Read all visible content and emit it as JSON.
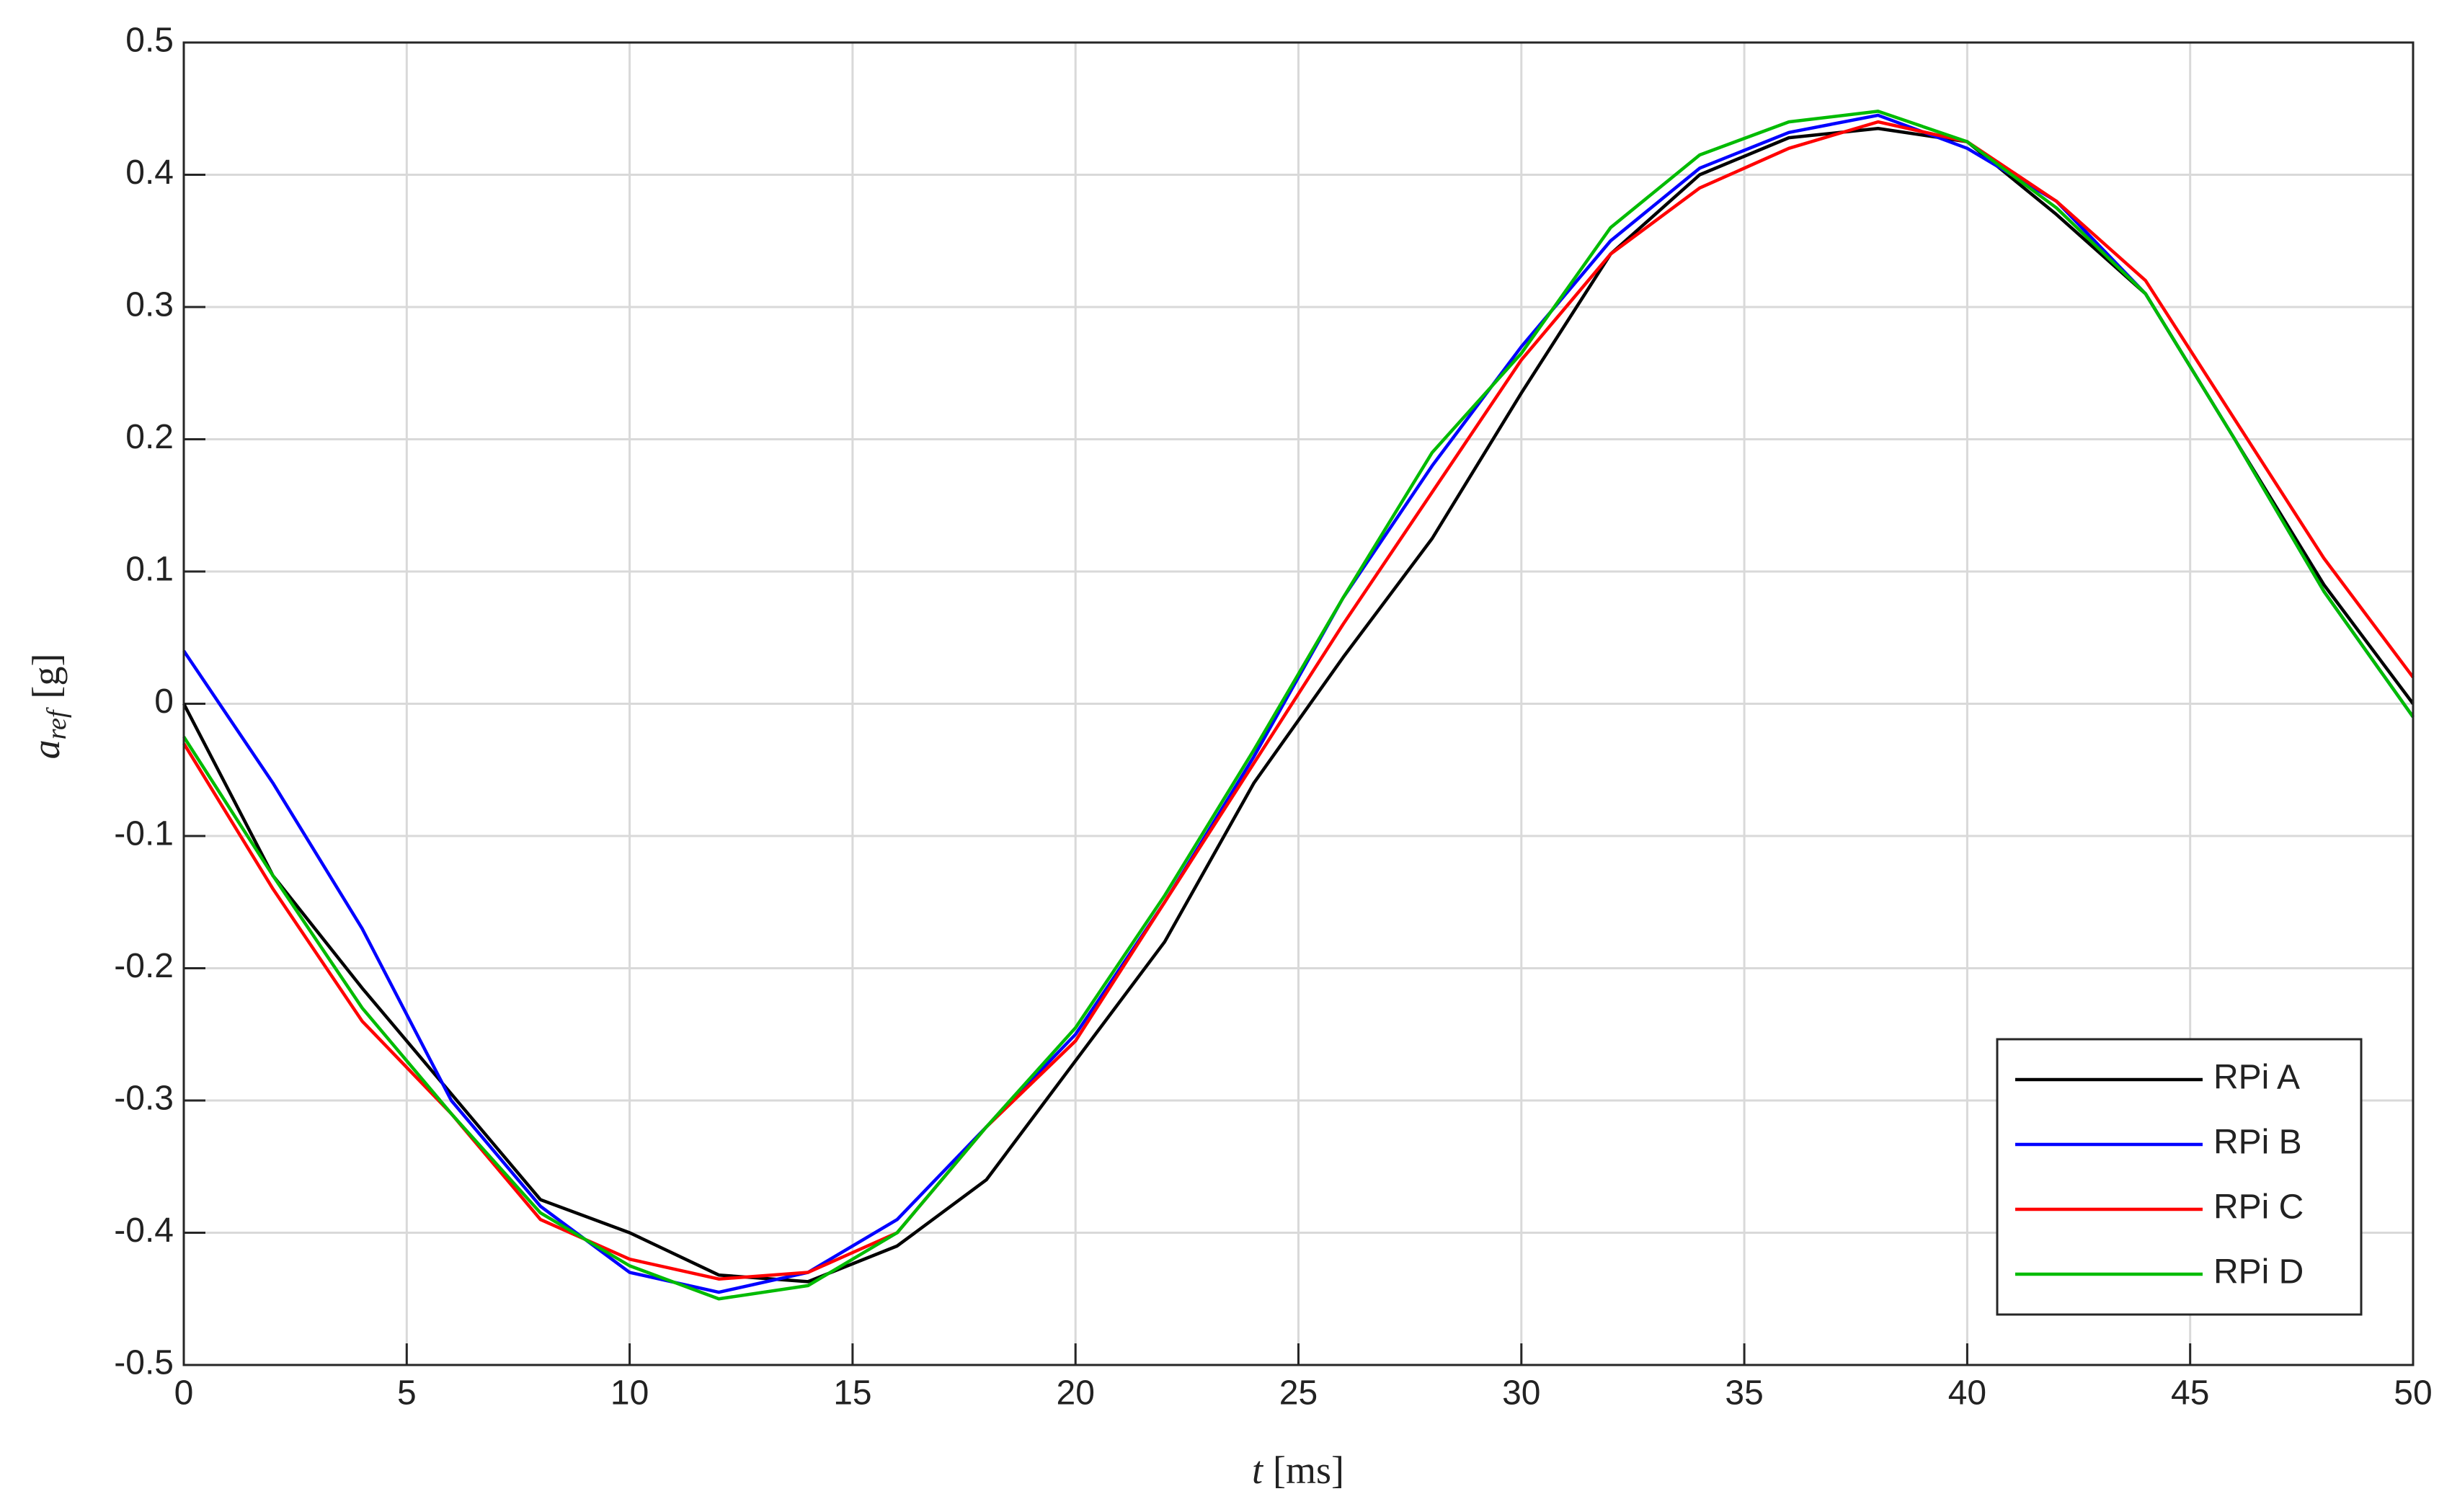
{
  "chart_data": {
    "type": "line",
    "xlabel": "t",
    "xlabel_unit": "[ms]",
    "ylabel": "a",
    "ylabel_sub": "ref",
    "ylabel_unit": "[g]",
    "x": [
      0,
      2,
      4,
      6,
      8,
      10,
      12,
      14,
      16,
      18,
      20,
      22,
      24,
      26,
      28,
      30,
      32,
      34,
      36,
      38,
      40,
      42,
      44,
      46,
      48,
      50
    ],
    "series": [
      {
        "name": "RPi A",
        "color": "#000000",
        "values": [
          0.0,
          -0.13,
          -0.215,
          -0.295,
          -0.375,
          -0.4,
          -0.432,
          -0.437,
          -0.41,
          -0.36,
          -0.27,
          -0.18,
          -0.06,
          0.035,
          0.125,
          0.235,
          0.34,
          0.4,
          0.428,
          0.435,
          0.425,
          0.37,
          0.31,
          0.2,
          0.09,
          0.0
        ]
      },
      {
        "name": "RPi B",
        "color": "#0000ff",
        "values": [
          0.04,
          -0.06,
          -0.17,
          -0.3,
          -0.38,
          -0.43,
          -0.445,
          -0.43,
          -0.39,
          -0.32,
          -0.25,
          -0.15,
          -0.04,
          0.08,
          0.18,
          0.27,
          0.35,
          0.405,
          0.432,
          0.445,
          0.42,
          0.38,
          0.31,
          0.2,
          0.085,
          -0.01
        ]
      },
      {
        "name": "RPi C",
        "color": "#ff0000",
        "values": [
          -0.03,
          -0.14,
          -0.24,
          -0.31,
          -0.39,
          -0.42,
          -0.435,
          -0.43,
          -0.4,
          -0.32,
          -0.255,
          -0.15,
          -0.045,
          0.06,
          0.16,
          0.26,
          0.34,
          0.39,
          0.42,
          0.44,
          0.425,
          0.38,
          0.32,
          0.215,
          0.11,
          0.02
        ]
      },
      {
        "name": "RPi D",
        "color": "#00bb00",
        "values": [
          -0.025,
          -0.13,
          -0.23,
          -0.31,
          -0.385,
          -0.425,
          -0.45,
          -0.44,
          -0.4,
          -0.32,
          -0.245,
          -0.145,
          -0.035,
          0.08,
          0.19,
          0.265,
          0.36,
          0.415,
          0.44,
          0.448,
          0.425,
          0.375,
          0.31,
          0.2,
          0.085,
          -0.01
        ]
      }
    ],
    "xlim": [
      0,
      50
    ],
    "xticks": [
      0,
      5,
      10,
      15,
      20,
      25,
      30,
      35,
      40,
      45,
      50
    ],
    "ylim": [
      -0.5,
      0.5
    ],
    "yticks": [
      -0.5,
      -0.4,
      -0.3,
      -0.2,
      -0.1,
      0,
      0.1,
      0.2,
      0.3,
      0.4,
      0.5
    ],
    "grid": true,
    "legend": "lower right"
  }
}
